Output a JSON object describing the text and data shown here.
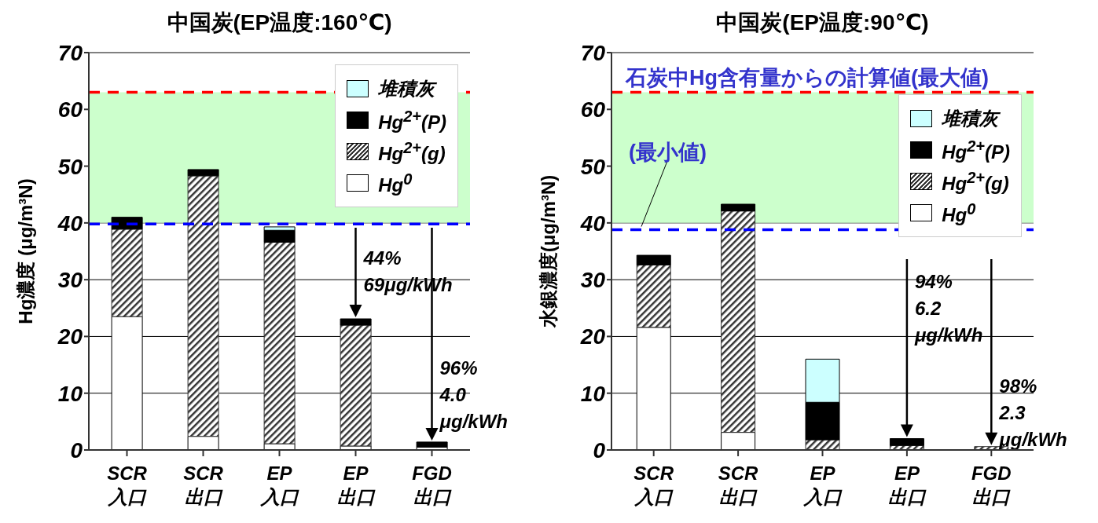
{
  "chart_data": [
    {
      "type": "bar",
      "stacked": true,
      "title": "中国炭(EP温度:160℃)",
      "ylabel": "Hg濃度 (μg/m³N)",
      "categories": [
        "SCR\n入口",
        "SCR\n出口",
        "EP\n入口",
        "EP\n出口",
        "FGD\n出口"
      ],
      "series": [
        {
          "name": "Hg$^{0}$",
          "color": "#ffffff",
          "values": [
            23.5,
            2.4,
            1.1,
            0.7,
            0.5
          ]
        },
        {
          "name": "Hg$^{2+}$(g)",
          "color": "#333333",
          "values": [
            15.4,
            45.9,
            35.5,
            21.3,
            0
          ]
        },
        {
          "name": "Hg$^{2+}$(P)",
          "color": "#000000",
          "values": [
            2.1,
            1.1,
            2.1,
            1.1,
            0.9
          ]
        },
        {
          "name": "堆積灰",
          "color": "#ccffff",
          "values": [
            0,
            0,
            0.6,
            0,
            0
          ]
        }
      ],
      "ylim": [
        0,
        70
      ],
      "yticks": [
        0,
        10,
        20,
        30,
        40,
        50,
        60,
        70
      ],
      "grid": "y",
      "legend": "top right",
      "bands": [
        {
          "axis": "y",
          "from": 40,
          "to": 63,
          "color": "#ccffcc"
        }
      ],
      "ref_lines": [
        {
          "axis": "y",
          "value": 63,
          "color": "#ff0000",
          "line_style": "dashed"
        },
        {
          "axis": "y",
          "value": 39.8,
          "color": "#0000ff",
          "line_style": "dashed"
        }
      ],
      "annotations": [
        "44% 69μg/kWh",
        "96% 4.0 μg/kWh"
      ]
    },
    {
      "type": "bar",
      "stacked": true,
      "title": "中国炭(EP温度:90℃)",
      "ylabel": "水銀濃度(μg/m³N)",
      "categories": [
        "SCR\n入口",
        "SCR\n出口",
        "EP\n入口",
        "EP\n出口",
        "FGD\n出口"
      ],
      "series": [
        {
          "name": "Hg$^{0}$",
          "color": "#ffffff",
          "values": [
            21.6,
            3.1,
            0,
            0,
            0
          ]
        },
        {
          "name": "Hg$^{2+}$(g)",
          "color": "#333333",
          "values": [
            11.0,
            39.0,
            1.8,
            0.8,
            0.6
          ]
        },
        {
          "name": "Hg$^{2+}$(P)",
          "color": "#000000",
          "values": [
            1.7,
            1.2,
            6.6,
            1.2,
            0
          ]
        },
        {
          "name": "堆積灰",
          "color": "#ccffff",
          "values": [
            0,
            0,
            7.6,
            0,
            0
          ]
        }
      ],
      "ylim": [
        0,
        70
      ],
      "yticks": [
        0,
        10,
        20,
        30,
        40,
        50,
        60,
        70
      ],
      "grid": "y",
      "legend": "top right",
      "bands": [
        {
          "axis": "y",
          "from": 40,
          "to": 63,
          "color": "#ccffcc"
        }
      ],
      "ref_lines": [
        {
          "axis": "y",
          "value": 63,
          "color": "#ff0000",
          "line_style": "dashed",
          "label": "石炭中Hg含有量からの計算値(最大値)"
        },
        {
          "axis": "y",
          "value": 38.8,
          "color": "#0000ff",
          "line_style": "dashed",
          "label": "(最小値)"
        }
      ],
      "annotations": [
        "94% 6.2 μg/kWh",
        "98% 2.3 μg/kWh"
      ]
    }
  ]
}
